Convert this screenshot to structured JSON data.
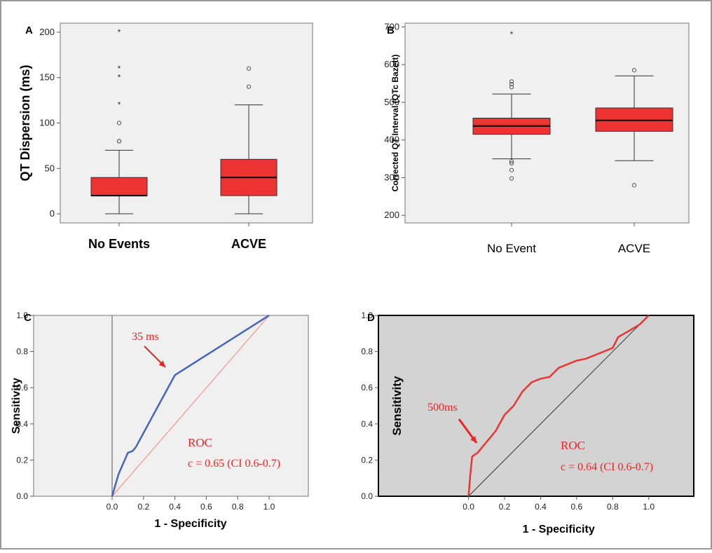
{
  "chart_data": [
    {
      "panel": "A",
      "type": "boxplot",
      "ylabel": "QT Dispersion (ms)",
      "ylim": [
        -10,
        210
      ],
      "yticks": [
        0,
        50,
        100,
        150,
        200
      ],
      "box_color": "#ee3333",
      "groups": [
        {
          "name": "No Events",
          "whisker_low": 0,
          "q1": 20,
          "median": 20,
          "q3": 40,
          "whisker_high": 70,
          "outliers_circle": [
            80,
            80,
            100
          ],
          "outliers_star": [
            120,
            150,
            160,
            200
          ]
        },
        {
          "name": "ACVE",
          "whisker_low": 0,
          "q1": 20,
          "median": 40,
          "q3": 60,
          "whisker_high": 120,
          "outliers_circle": [
            140,
            160
          ],
          "outliers_star": []
        }
      ]
    },
    {
      "panel": "B",
      "type": "boxplot",
      "ylabel": "Corrected QT Interval (QTc Bazett)",
      "ylim": [
        180,
        710
      ],
      "yticks": [
        200,
        300,
        400,
        500,
        600,
        700
      ],
      "box_color": "#ee3333",
      "groups": [
        {
          "name": "No Event",
          "whisker_low": 350,
          "q1": 415,
          "median": 437,
          "q3": 458,
          "whisker_high": 522,
          "outliers_circle": [
            298,
            320,
            338,
            343,
            540,
            548,
            555
          ],
          "outliers_star": [
            680
          ]
        },
        {
          "name": "ACVE",
          "whisker_low": 345,
          "q1": 423,
          "median": 452,
          "q3": 485,
          "whisker_high": 570,
          "outliers_circle": [
            280,
            585
          ],
          "outliers_star": []
        }
      ]
    },
    {
      "panel": "C",
      "type": "line",
      "xlabel": "1 - Specificity",
      "ylabel": "Sensitivity",
      "xlim": [
        -0.5,
        1.25
      ],
      "ylim": [
        0,
        1
      ],
      "xticks": [
        "0.0",
        "0.2",
        "0.4",
        "0.6",
        "0.8",
        "1.0"
      ],
      "yticks": [
        "0.0",
        "0.2",
        "0.4",
        "0.6",
        "0.8",
        "1.0"
      ],
      "series": [
        {
          "color": "#4466bb",
          "points": [
            [
              0,
              0
            ],
            [
              0.04,
              0.12
            ],
            [
              0.1,
              0.24
            ],
            [
              0.13,
              0.25
            ],
            [
              0.15,
              0.27
            ],
            [
              0.4,
              0.67
            ],
            [
              1.0,
              1.0
            ]
          ]
        },
        {
          "color": "#ff8080",
          "points": [
            [
              0,
              0
            ],
            [
              1,
              1
            ]
          ]
        }
      ],
      "annotations": {
        "cutoff": "35 ms",
        "roc": "ROC",
        "c": "c = 0.65 (CI 0.6-0.7)"
      }
    },
    {
      "panel": "D",
      "type": "line",
      "xlabel": "1 - Specificity",
      "ylabel": "Sensitivity",
      "xlim": [
        -0.5,
        1.25
      ],
      "ylim": [
        0,
        1
      ],
      "xticks": [
        "0.0",
        "0.2",
        "0.4",
        "0.6",
        "0.8",
        "1.0"
      ],
      "yticks": [
        "0.0",
        "0.2",
        "0.4",
        "0.6",
        "0.8",
        "1.0"
      ],
      "series": [
        {
          "color": "#ee3333",
          "points": [
            [
              0,
              0
            ],
            [
              0.01,
              0.12
            ],
            [
              0.02,
              0.22
            ],
            [
              0.05,
              0.24
            ],
            [
              0.1,
              0.3
            ],
            [
              0.15,
              0.36
            ],
            [
              0.2,
              0.45
            ],
            [
              0.25,
              0.5
            ],
            [
              0.3,
              0.58
            ],
            [
              0.35,
              0.63
            ],
            [
              0.4,
              0.65
            ],
            [
              0.45,
              0.66
            ],
            [
              0.5,
              0.71
            ],
            [
              0.55,
              0.73
            ],
            [
              0.6,
              0.75
            ],
            [
              0.65,
              0.76
            ],
            [
              0.7,
              0.78
            ],
            [
              0.75,
              0.8
            ],
            [
              0.8,
              0.82
            ],
            [
              0.83,
              0.88
            ],
            [
              0.9,
              0.92
            ],
            [
              0.95,
              0.95
            ],
            [
              1.0,
              1.0
            ]
          ]
        },
        {
          "color": "#333333",
          "points": [
            [
              0,
              0
            ],
            [
              1,
              1
            ]
          ]
        }
      ],
      "annotations": {
        "cutoff": "500ms",
        "roc": "ROC",
        "c": "c = 0.64 (CI 0.6-0.7)"
      }
    }
  ]
}
